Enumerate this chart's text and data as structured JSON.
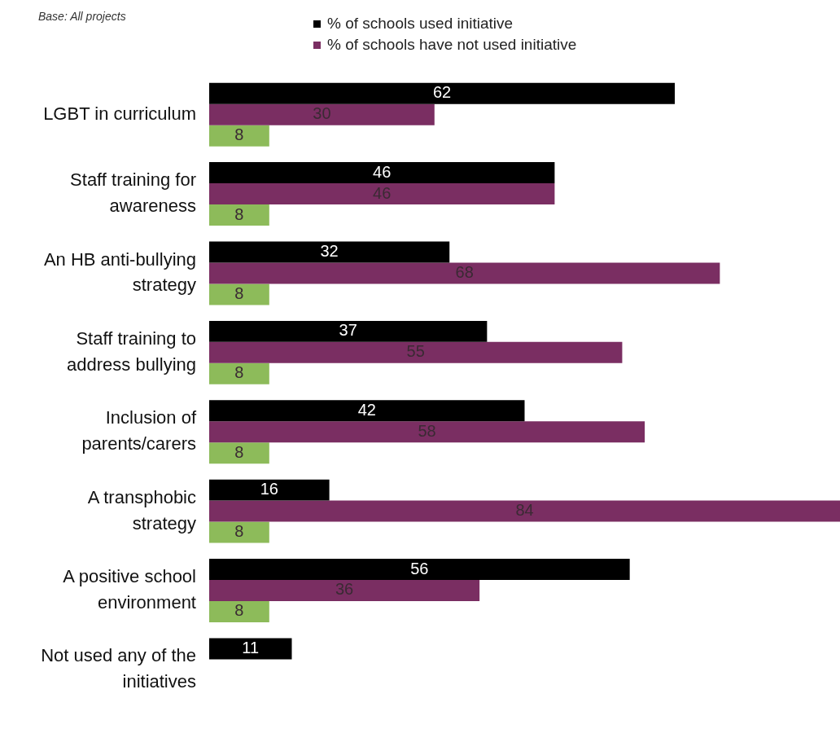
{
  "chart_data": {
    "type": "bar",
    "orientation": "horizontal",
    "categories": [
      "LGBT in curriculum",
      "Staff training for awareness",
      "An HB anti-bullying strategy",
      "Staff training to address bullying",
      "Inclusion of parents/carers",
      "A transphobic strategy",
      "A positive school environment",
      "Not used any of the initiatives"
    ],
    "series": [
      {
        "name": "% of schools used initiative",
        "color": "#000000",
        "values": [
          62,
          46,
          32,
          37,
          42,
          16,
          56,
          11
        ]
      },
      {
        "name": "% of schools have not used initiative",
        "color": "#7a2e62",
        "values": [
          30,
          46,
          68,
          55,
          58,
          84,
          36,
          null
        ]
      },
      {
        "color": "#8dbb5a",
        "values": [
          8,
          8,
          8,
          8,
          8,
          8,
          8,
          null
        ]
      }
    ],
    "data_labels": true,
    "legend": "top",
    "annotations": [
      "Base: All projects"
    ]
  }
}
